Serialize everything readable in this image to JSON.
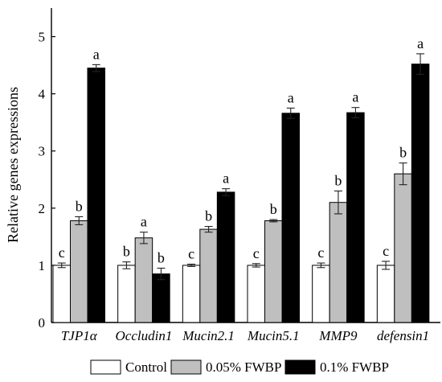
{
  "chart_data": {
    "type": "bar",
    "title": "",
    "xlabel": "",
    "ylabel": "Relative genes expressions",
    "ylim": [
      0,
      5.5
    ],
    "yticks": [
      0,
      1,
      2,
      3,
      4,
      5
    ],
    "grid": false,
    "legend_position": "bottom",
    "categories": [
      "TJP1α",
      "Occludin1",
      "Mucin2.1",
      "Mucin5.1",
      "MMP9",
      "defensin1"
    ],
    "series": [
      {
        "name": "Control",
        "color": "#ffffff",
        "values": [
          1.0,
          1.0,
          1.0,
          1.0,
          1.0,
          1.0
        ],
        "errors": [
          0.04,
          0.06,
          0.02,
          0.03,
          0.04,
          0.07
        ],
        "labels": [
          "c",
          "b",
          "c",
          "c",
          "c",
          "c"
        ]
      },
      {
        "name": "0.05% FWBP",
        "color": "#bfbfbf",
        "values": [
          1.78,
          1.48,
          1.63,
          1.78,
          2.1,
          2.6
        ],
        "errors": [
          0.07,
          0.1,
          0.05,
          0.02,
          0.2,
          0.19
        ],
        "labels": [
          "b",
          "a",
          "b",
          "b",
          "b",
          "b"
        ]
      },
      {
        "name": "0.1% FWBP",
        "color": "#000000",
        "values": [
          4.45,
          0.85,
          2.28,
          3.66,
          3.67,
          4.52
        ],
        "errors": [
          0.06,
          0.1,
          0.06,
          0.09,
          0.09,
          0.18
        ],
        "labels": [
          "a",
          "b",
          "a",
          "a",
          "a",
          "a"
        ]
      }
    ]
  }
}
